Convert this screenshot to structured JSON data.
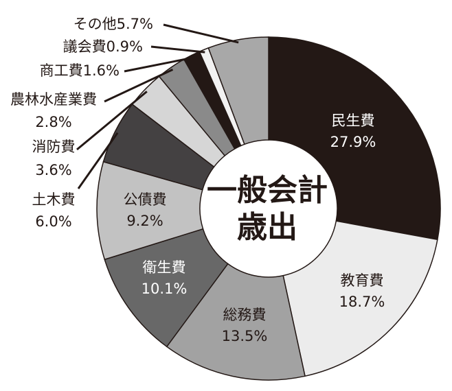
{
  "chart_data": {
    "type": "pie",
    "title": "一般会計歳出",
    "title_lines": [
      "一般会計",
      "歳出"
    ],
    "unit": "%",
    "slices": [
      {
        "name": "民生費",
        "value": 27.9,
        "value_label": "27.9%",
        "color": "#231815",
        "text_color": "#ffffff"
      },
      {
        "name": "教育費",
        "value": 18.7,
        "value_label": "18.7%",
        "color": "#ececec",
        "text_color": "#231815"
      },
      {
        "name": "総務費",
        "value": 13.5,
        "value_label": "13.5%",
        "color": "#a2a2a2",
        "text_color": "#231815"
      },
      {
        "name": "衛生費",
        "value": 10.1,
        "value_label": "10.1%",
        "color": "#686868",
        "text_color": "#ffffff"
      },
      {
        "name": "公債費",
        "value": 9.2,
        "value_label": "9.2%",
        "color": "#c2c2c2",
        "text_color": "#231815"
      },
      {
        "name": "土木費",
        "value": 6.0,
        "value_label": "6.0%",
        "color": "#444142",
        "text_color": "#231815"
      },
      {
        "name": "消防費",
        "value": 3.6,
        "value_label": "3.6%",
        "color": "#d6d6d6",
        "text_color": "#231815"
      },
      {
        "name": "農林水産業費",
        "value": 2.8,
        "value_label": "2.8%",
        "color": "#8a8a8a",
        "text_color": "#231815"
      },
      {
        "name": "商工費",
        "value": 1.6,
        "value_label": "1.6%",
        "color": "#231815",
        "text_color": "#231815"
      },
      {
        "name": "議会費",
        "value": 0.9,
        "value_label": "0.9%",
        "color": "#f2f2f2",
        "text_color": "#231815"
      },
      {
        "name": "その他",
        "value": 5.7,
        "value_label": "5.7%",
        "color": "#a8a8a8",
        "text_color": "#231815"
      }
    ]
  }
}
